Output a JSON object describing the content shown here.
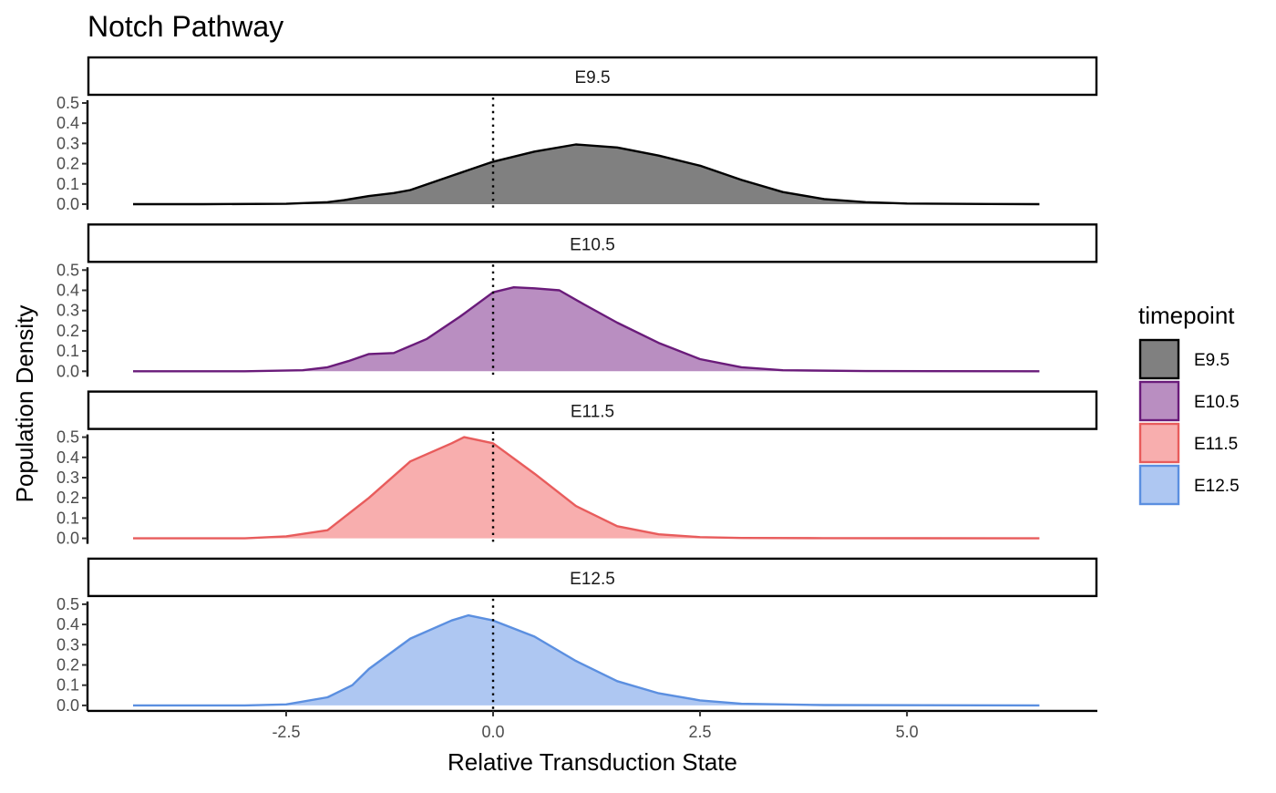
{
  "chart_data": {
    "type": "area",
    "title": "Notch Pathway",
    "xlabel": "Relative Transduction State",
    "ylabel": "Population Density",
    "xlim": [
      -4.9,
      7.3
    ],
    "ylim": [
      0,
      0.5
    ],
    "x_ticks": [
      -2.5,
      0.0,
      2.5,
      5.0
    ],
    "x_tick_labels": [
      "-2.5",
      "0.0",
      "2.5",
      "5.0"
    ],
    "y_ticks": [
      0,
      0.1,
      0.2,
      0.3,
      0.4,
      0.5
    ],
    "y_tick_labels": [
      "0.0",
      "0.1",
      "0.2",
      "0.3",
      "0.4",
      "0.5"
    ],
    "reference_line_x": 0,
    "grid": false,
    "legend": {
      "title": "timepoint",
      "placement": "right"
    },
    "series": [
      {
        "name": "E9.5",
        "color": "#000000",
        "fill": "#808080",
        "points": [
          [
            -4.35,
            0
          ],
          [
            -3.5,
            0
          ],
          [
            -2.5,
            0.002
          ],
          [
            -2.0,
            0.01
          ],
          [
            -1.8,
            0.02
          ],
          [
            -1.5,
            0.04
          ],
          [
            -1.2,
            0.055
          ],
          [
            -1.0,
            0.07
          ],
          [
            -0.5,
            0.14
          ],
          [
            0,
            0.21
          ],
          [
            0.5,
            0.26
          ],
          [
            1.0,
            0.295
          ],
          [
            1.5,
            0.28
          ],
          [
            2.0,
            0.24
          ],
          [
            2.5,
            0.19
          ],
          [
            3.0,
            0.12
          ],
          [
            3.5,
            0.06
          ],
          [
            4.0,
            0.025
          ],
          [
            4.5,
            0.01
          ],
          [
            5.0,
            0.003
          ],
          [
            6.0,
            0.001
          ],
          [
            6.6,
            0
          ]
        ]
      },
      {
        "name": "E10.5",
        "color": "#6a1b7a",
        "fill": "#b98ec1",
        "points": [
          [
            -4.35,
            0
          ],
          [
            -3.0,
            0
          ],
          [
            -2.3,
            0.005
          ],
          [
            -2.0,
            0.02
          ],
          [
            -1.75,
            0.05
          ],
          [
            -1.5,
            0.085
          ],
          [
            -1.2,
            0.09
          ],
          [
            -0.8,
            0.16
          ],
          [
            -0.4,
            0.27
          ],
          [
            0,
            0.39
          ],
          [
            0.25,
            0.415
          ],
          [
            0.5,
            0.41
          ],
          [
            0.8,
            0.4
          ],
          [
            1.1,
            0.33
          ],
          [
            1.5,
            0.24
          ],
          [
            2.0,
            0.14
          ],
          [
            2.5,
            0.06
          ],
          [
            3.0,
            0.02
          ],
          [
            3.5,
            0.005
          ],
          [
            4.5,
            0.001
          ],
          [
            6.6,
            0
          ]
        ]
      },
      {
        "name": "E11.5",
        "color": "#e85c5c",
        "fill": "#f8aeae",
        "points": [
          [
            -4.35,
            0
          ],
          [
            -3.0,
            0
          ],
          [
            -2.5,
            0.01
          ],
          [
            -2.0,
            0.04
          ],
          [
            -1.5,
            0.2
          ],
          [
            -1.0,
            0.38
          ],
          [
            -0.5,
            0.47
          ],
          [
            -0.35,
            0.5
          ],
          [
            0,
            0.47
          ],
          [
            0.5,
            0.32
          ],
          [
            1.0,
            0.16
          ],
          [
            1.5,
            0.06
          ],
          [
            2.0,
            0.02
          ],
          [
            2.5,
            0.006
          ],
          [
            3.0,
            0.002
          ],
          [
            4.0,
            0.001
          ],
          [
            6.6,
            0
          ]
        ]
      },
      {
        "name": "E12.5",
        "color": "#5b8fe0",
        "fill": "#aec7f2",
        "points": [
          [
            -4.35,
            0
          ],
          [
            -3.0,
            0
          ],
          [
            -2.5,
            0.005
          ],
          [
            -2.0,
            0.04
          ],
          [
            -1.7,
            0.1
          ],
          [
            -1.5,
            0.18
          ],
          [
            -1.0,
            0.33
          ],
          [
            -0.5,
            0.42
          ],
          [
            -0.3,
            0.445
          ],
          [
            0,
            0.42
          ],
          [
            0.5,
            0.34
          ],
          [
            1.0,
            0.22
          ],
          [
            1.5,
            0.12
          ],
          [
            2.0,
            0.06
          ],
          [
            2.5,
            0.025
          ],
          [
            3.0,
            0.008
          ],
          [
            4.0,
            0.002
          ],
          [
            6.6,
            0
          ]
        ]
      }
    ]
  }
}
